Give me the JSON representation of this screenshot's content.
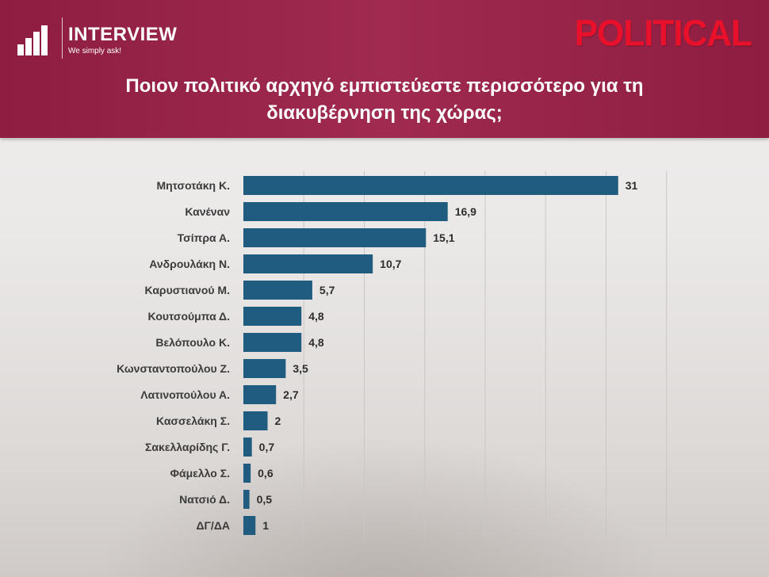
{
  "header": {
    "logo_name": "INTERVIEW",
    "logo_tagline": "We simply ask!",
    "brand": "POLITICAL",
    "title_line1": "Ποιον πολιτικό αρχηγό εμπιστεύεστε περισσότερο για τη",
    "title_line2": "διακυβέρνηση της χώρας;"
  },
  "colors": {
    "header_bg": "#97224a",
    "bar": "#1f5c80",
    "brand": "#e8102a"
  },
  "chart_data": {
    "type": "bar",
    "orientation": "horizontal",
    "title": "Ποιον πολιτικό αρχηγό εμπιστεύεστε περισσότερο για τη διακυβέρνηση της χώρας;",
    "categories": [
      "Μητσοτάκη Κ.",
      "Κανέναν",
      "Τσίπρα Α.",
      "Ανδρουλάκη Ν.",
      "Καρυστιανού Μ.",
      "Κουτσούμπα Δ.",
      "Βελόπουλο Κ.",
      "Κωνσταντοπούλου Ζ.",
      "Λατινοπούλου Α.",
      "Κασσελάκη Σ.",
      "Σακελλαρίδης Γ.",
      "Φάμελλο Σ.",
      "Νατσιό Δ.",
      "ΔΓ/ΔΑ"
    ],
    "values": [
      31,
      16.9,
      15.1,
      10.7,
      5.7,
      4.8,
      4.8,
      3.5,
      2.7,
      2,
      0.7,
      0.6,
      0.5,
      1
    ],
    "value_labels": [
      "31",
      "16,9",
      "15,1",
      "10,7",
      "5,7",
      "4,8",
      "4,8",
      "3,5",
      "2,7",
      "2",
      "0,7",
      "0,6",
      "0,5",
      "1"
    ],
    "xlim": [
      0,
      35
    ],
    "grid": true,
    "legend": "none"
  }
}
